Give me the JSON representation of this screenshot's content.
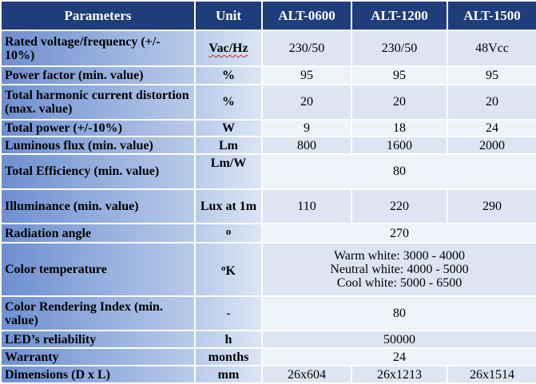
{
  "header": {
    "parameters": "Parameters",
    "unit": "Unit",
    "models": [
      "ALT-0600",
      "ALT-1200",
      "ALT-1500"
    ]
  },
  "rows": [
    {
      "param": "Rated voltage/frequency (+/- 10%)",
      "unit": "Vac/Hz",
      "values": [
        "230/50",
        "230/50",
        "48Vcc"
      ]
    },
    {
      "param": "Power factor (min. value)",
      "unit": "%",
      "values": [
        "95",
        "95",
        "95"
      ]
    },
    {
      "param": "Total harmonic current distortion (max. value)",
      "unit": "%",
      "values": [
        "20",
        "20",
        "20"
      ]
    },
    {
      "param": "Total power (+/-10%)",
      "unit": "W",
      "values": [
        "9",
        "18",
        "24"
      ]
    },
    {
      "param": "Luminous flux (min. value)",
      "unit": "Lm",
      "values": [
        "800",
        "1600",
        "2000"
      ]
    },
    {
      "param": "Total Efficiency (min. value)",
      "unit": "Lm/W",
      "value": "80"
    },
    {
      "param": "Illuminance (min. value)",
      "unit": "Lux at 1m",
      "values": [
        "110",
        "220",
        "290"
      ]
    },
    {
      "param": "Radiation angle",
      "unit": "o",
      "value": "270"
    },
    {
      "param": "Color temperature",
      "unit_sup": "o",
      "unit": "K",
      "lines": [
        "Warm white: 3000 - 4000",
        "Neutral white: 4000 - 5000",
        "Cool white: 5000 - 6500"
      ]
    },
    {
      "param": "Color Rendering Index (min. value)",
      "unit": "-",
      "value": "80"
    },
    {
      "param": "LED’s reliability",
      "unit": "h",
      "value": "50000"
    },
    {
      "param": "Warranty",
      "unit": "months",
      "value": "24"
    },
    {
      "param": "Dimensions (D x L)",
      "unit": "mm",
      "values": [
        "26x604",
        "26x1213",
        "26x1514"
      ]
    }
  ]
}
